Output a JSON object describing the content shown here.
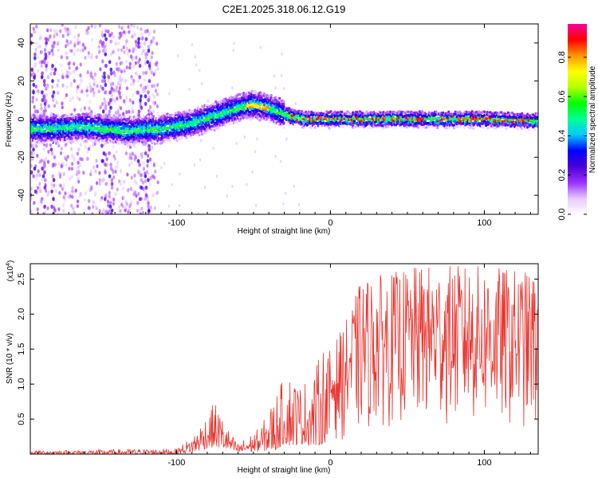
{
  "title": "C2E1.2025.318.06.12.G19",
  "chart_data": [
    {
      "type": "heatmap",
      "name": "spectrogram",
      "xlabel": "Height of straight line (km)",
      "ylabel": "Frequency (Hz)",
      "xlim": [
        -195,
        135
      ],
      "ylim": [
        -50,
        50
      ],
      "xticks": [
        -100,
        0,
        100
      ],
      "yticks": [
        -40,
        -20,
        0,
        20,
        40
      ],
      "ridge": {
        "x": [
          -190,
          -160,
          -130,
          -110,
          -90,
          -75,
          -60,
          -50,
          -40,
          -30,
          -25,
          -15,
          0,
          50,
          100,
          135
        ],
        "freq": [
          -5,
          -4,
          -6,
          -5,
          -2,
          2,
          6,
          8,
          6,
          3,
          1,
          0,
          0,
          0,
          0,
          -1
        ]
      },
      "colorbar": {
        "label": "Normalized spectral amplitude",
        "range": [
          0,
          0.97
        ],
        "ticks": [
          0.0,
          0.2,
          0.4,
          0.6,
          0.8
        ],
        "tick_labels": [
          "0.0",
          "0.2",
          "0.4",
          "0.6",
          "0.8"
        ],
        "colors": [
          "#ffffff",
          "#e6c8ff",
          "#9b30ff",
          "#4b00d8",
          "#0000ff",
          "#00c8ff",
          "#00ff96",
          "#00ff00",
          "#b4ff00",
          "#ffff00",
          "#ff9600",
          "#ff0000",
          "#ff0096"
        ]
      }
    },
    {
      "type": "line",
      "name": "snr",
      "xlabel": "Height of straight line (km)",
      "ylabel": "SNR (10 * v/v)",
      "multiplier": "(x10",
      "multiplier_exp": "4",
      "multiplier_close": ")",
      "xlim": [
        -195,
        135
      ],
      "ylim": [
        0,
        2.72
      ],
      "xticks": [
        -100,
        0,
        100
      ],
      "yticks": [
        0.5,
        1.0,
        1.5,
        2.0,
        2.5
      ],
      "ytick_labels": [
        "0.5",
        "1.0",
        "1.5",
        "2.0",
        "2.5"
      ],
      "color": "#e8352f",
      "envelope": {
        "x": [
          -195,
          -100,
          -90,
          -80,
          -75,
          -65,
          -60,
          -45,
          -35,
          -30,
          -25,
          -20,
          -10,
          -5,
          0,
          10,
          20,
          40,
          60,
          100,
          135
        ],
        "low": [
          0.0,
          0.0,
          0.02,
          0.08,
          0.1,
          0.05,
          0.02,
          0.04,
          0.05,
          0.15,
          0.1,
          0.15,
          0.1,
          0.15,
          0.2,
          0.2,
          0.3,
          0.4,
          0.4,
          0.4,
          0.3
        ],
        "high": [
          0.05,
          0.08,
          0.25,
          0.6,
          0.75,
          0.3,
          0.15,
          0.4,
          0.9,
          1.1,
          1.2,
          1.0,
          1.2,
          1.6,
          1.5,
          1.9,
          2.5,
          2.6,
          2.7,
          2.7,
          2.6
        ]
      }
    }
  ]
}
